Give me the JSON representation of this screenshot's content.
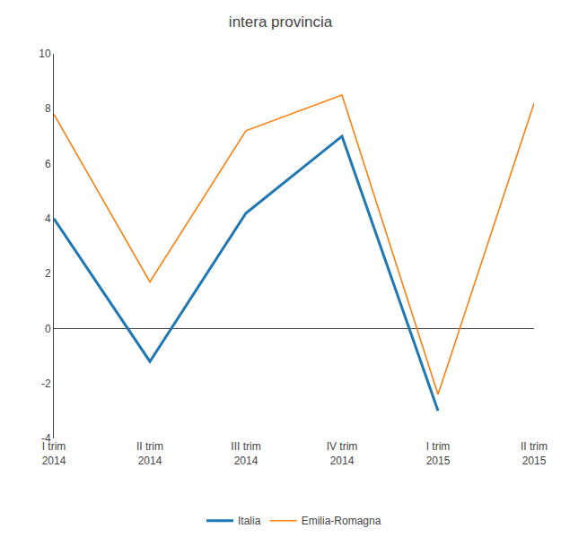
{
  "chart_data": {
    "type": "line",
    "title": "intera provincia",
    "categories": [
      "I trim\n2014",
      "II trim\n2014",
      "III trim\n2014",
      "IV trim\n2014",
      "I trim\n2015",
      "II trim\n2015"
    ],
    "series": [
      {
        "name": "Italia",
        "values": [
          4.0,
          -1.2,
          4.2,
          7.0,
          -3.0,
          null
        ]
      },
      {
        "name": "Emilia-Romagna",
        "values": [
          7.8,
          1.7,
          7.2,
          8.5,
          -2.4,
          8.2
        ]
      }
    ],
    "ylim": [
      -4,
      10
    ],
    "yticks": [
      -4,
      -2,
      0,
      2,
      4,
      6,
      8,
      10
    ],
    "grid": false,
    "legend": "bottom"
  }
}
